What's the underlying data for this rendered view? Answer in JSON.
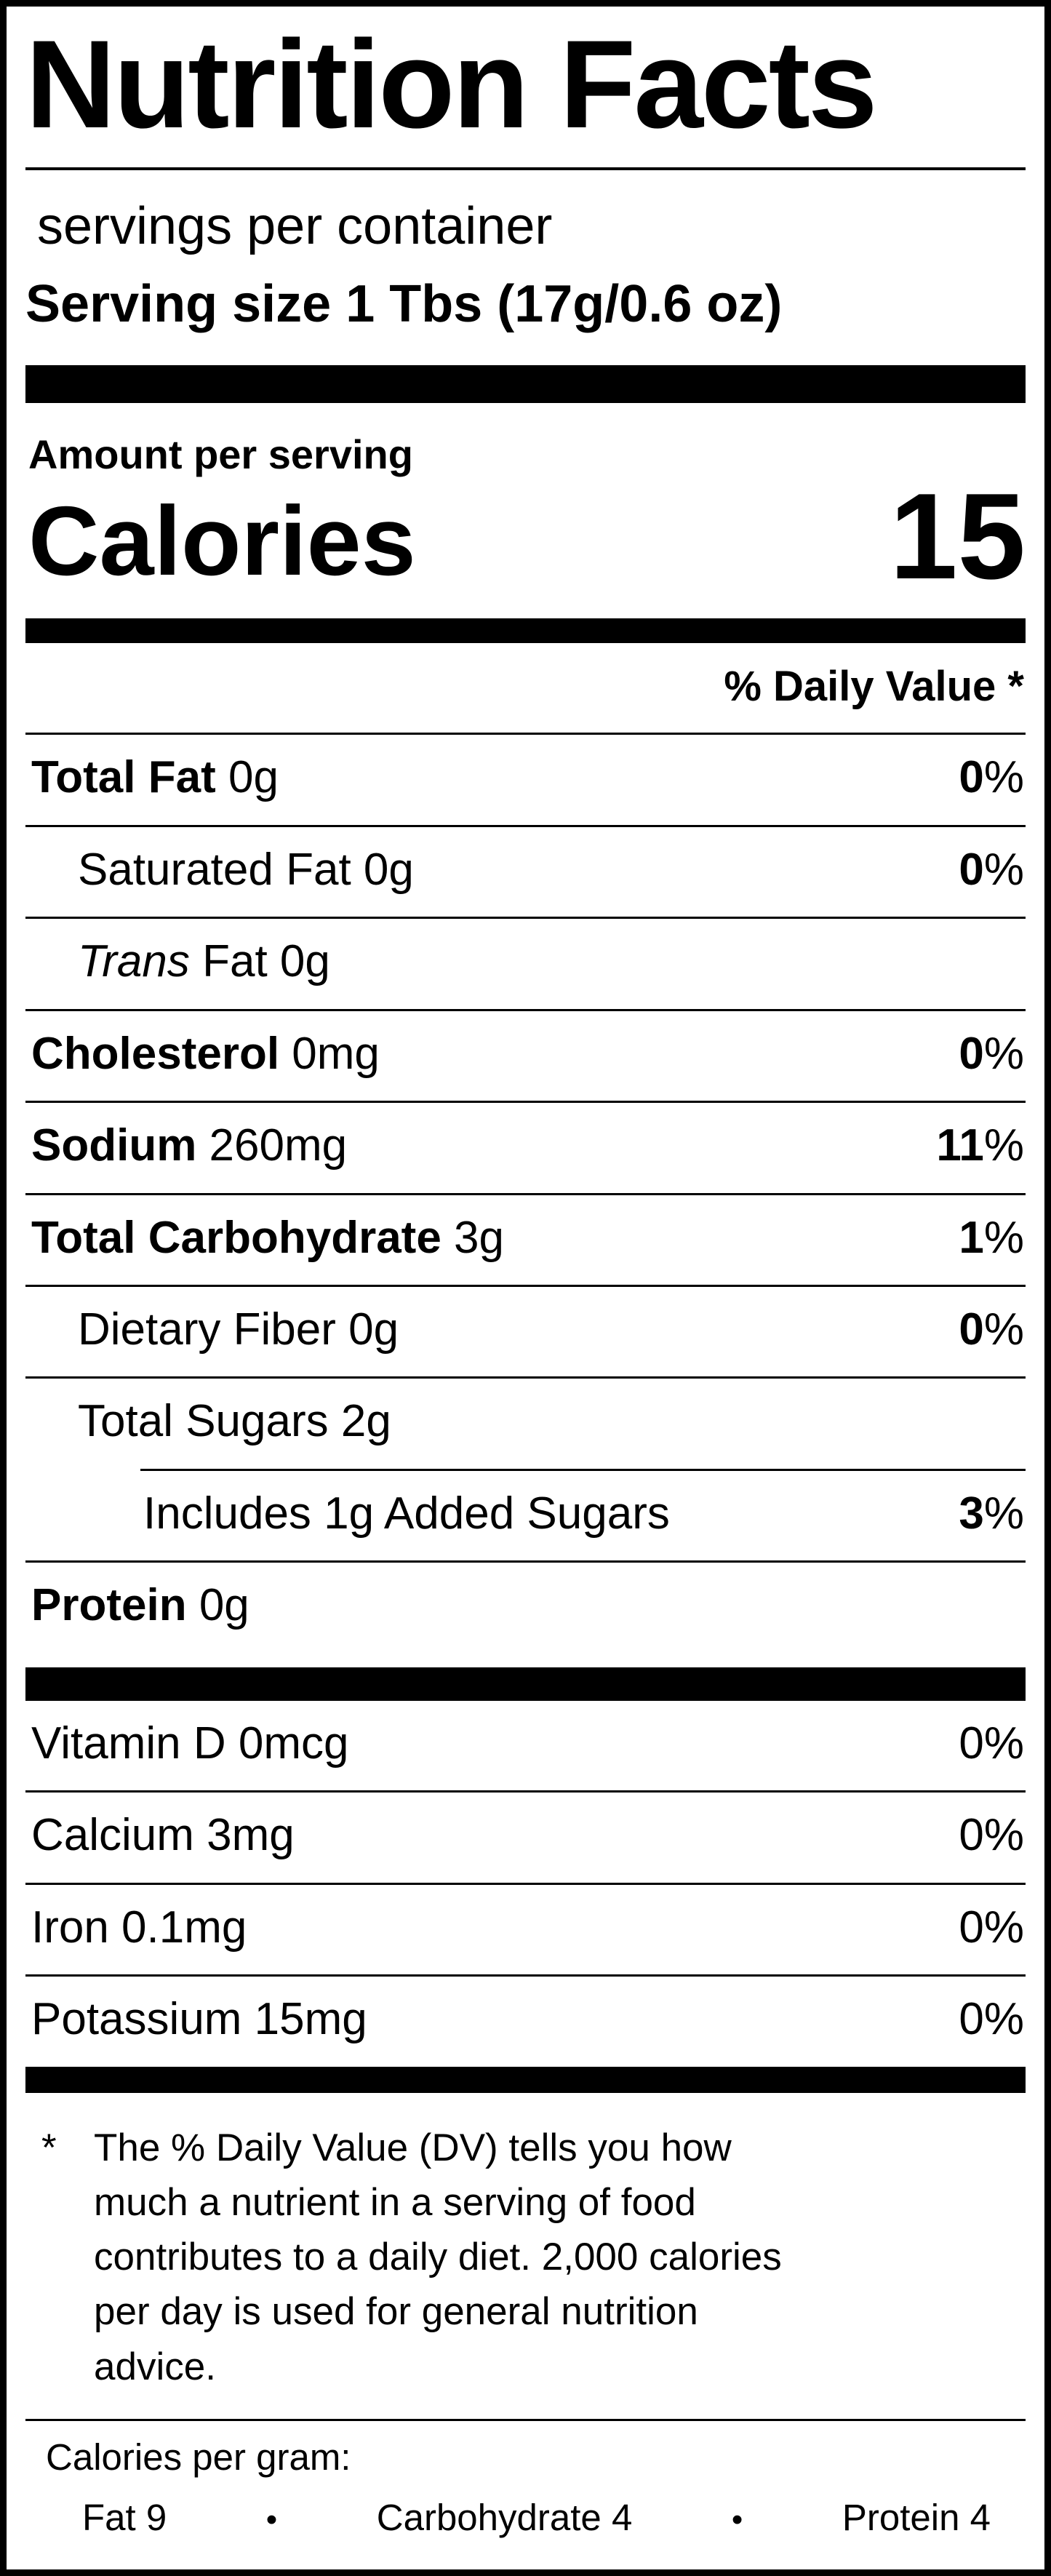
{
  "title": "Nutrition Facts",
  "servings_per_container": "servings per container",
  "serving_size": "Serving size 1 Tbs (17g/0.6 oz)",
  "amount_per_serving": "Amount per serving",
  "calories_label": "Calories",
  "calories_value": "15",
  "daily_value_header": "% Daily Value *",
  "colors": {
    "ink": "#000000",
    "paper": "#ffffff"
  },
  "rows": [
    {
      "strong": "Total Fat",
      "italic": "",
      "rest": " 0g",
      "dv": "0",
      "pct": "%"
    },
    {
      "strong": "",
      "italic": "",
      "rest": "Saturated Fat 0g",
      "dv": "0",
      "pct": "%"
    },
    {
      "strong": "",
      "italic": "Trans",
      "rest": " Fat 0g",
      "dv": "",
      "pct": ""
    },
    {
      "strong": "Cholesterol",
      "italic": "",
      "rest": " 0mg",
      "dv": "0",
      "pct": "%"
    },
    {
      "strong": "Sodium",
      "italic": "",
      "rest": " 260mg",
      "dv": "11",
      "pct": "%"
    },
    {
      "strong": "Total Carbohydrate",
      "italic": "",
      "rest": " 3g",
      "dv": "1",
      "pct": "%"
    },
    {
      "strong": "",
      "italic": "",
      "rest": "Dietary Fiber 0g",
      "dv": "0",
      "pct": "%"
    },
    {
      "strong": "",
      "italic": "",
      "rest": "Total Sugars 2g",
      "dv": "",
      "pct": ""
    },
    {
      "strong": "",
      "italic": "",
      "rest": "Includes 1g Added Sugars",
      "dv": "3",
      "pct": "%"
    },
    {
      "strong": "Protein",
      "italic": "",
      "rest": " 0g",
      "dv": "",
      "pct": ""
    }
  ],
  "vitamins": [
    {
      "text": "Vitamin D 0mcg",
      "dv": "0",
      "pct": "%"
    },
    {
      "text": "Calcium 3mg",
      "dv": "0",
      "pct": "%"
    },
    {
      "text": "Iron 0.1mg",
      "dv": "0",
      "pct": "%"
    },
    {
      "text": "Potassium 15mg",
      "dv": "0",
      "pct": "%"
    }
  ],
  "footnote": {
    "asterisk": "*",
    "lines": [
      "The % Daily Value (DV) tells you how",
      "much a nutrient in a serving of food",
      "contributes to a daily diet. 2,000 calories",
      "per day is used for general nutrition",
      "advice."
    ]
  },
  "calories_per_gram": {
    "label": "Calories per gram:",
    "fat": "Fat 9",
    "carbohydrate": "Carbohydrate 4",
    "protein": "Protein 4",
    "bullet": "•"
  }
}
